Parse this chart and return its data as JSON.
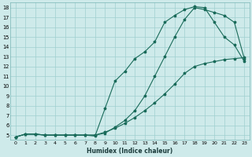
{
  "xlabel": "Humidex (Indice chaleur)",
  "bg_color": "#ceeaea",
  "grid_color": "#9fcfcf",
  "line_color": "#1a6b5a",
  "xlim": [
    -0.5,
    23.5
  ],
  "ylim": [
    4.5,
    18.5
  ],
  "xticks": [
    0,
    1,
    2,
    3,
    4,
    5,
    6,
    7,
    8,
    9,
    10,
    11,
    12,
    13,
    14,
    15,
    16,
    17,
    18,
    19,
    20,
    21,
    22,
    23
  ],
  "yticks": [
    5,
    6,
    7,
    8,
    9,
    10,
    11,
    12,
    13,
    14,
    15,
    16,
    17,
    18
  ],
  "line1_x": [
    0,
    1,
    2,
    3,
    4,
    5,
    6,
    7,
    8,
    9,
    10,
    11,
    12,
    13,
    14,
    15,
    16,
    17,
    18,
    19,
    20,
    21,
    22,
    23
  ],
  "line1_y": [
    4.8,
    5.1,
    5.1,
    5.0,
    5.0,
    5.0,
    5.0,
    5.0,
    5.0,
    5.3,
    5.7,
    6.2,
    6.8,
    7.5,
    8.3,
    9.2,
    10.2,
    11.3,
    12.0,
    12.3,
    12.5,
    12.7,
    12.8,
    12.9
  ],
  "line2_x": [
    0,
    1,
    2,
    3,
    4,
    5,
    6,
    7,
    8,
    9,
    10,
    11,
    12,
    13,
    14,
    15,
    16,
    17,
    18,
    19,
    20,
    21,
    22,
    23
  ],
  "line2_y": [
    4.8,
    5.1,
    5.1,
    5.0,
    5.0,
    5.0,
    5.0,
    5.0,
    5.0,
    5.2,
    5.8,
    6.5,
    7.5,
    9.0,
    11.0,
    13.0,
    15.0,
    16.8,
    18.0,
    17.8,
    17.5,
    17.2,
    16.5,
    12.8
  ],
  "line3_x": [
    0,
    1,
    2,
    3,
    4,
    5,
    6,
    7,
    8,
    9,
    10,
    11,
    12,
    13,
    14,
    15,
    16,
    17,
    18,
    19,
    20,
    21,
    22,
    23
  ],
  "line3_y": [
    4.8,
    5.1,
    5.1,
    5.0,
    5.0,
    5.0,
    5.0,
    5.0,
    4.9,
    7.7,
    10.5,
    11.5,
    12.8,
    13.5,
    14.5,
    16.5,
    17.2,
    17.8,
    18.1,
    18.0,
    16.5,
    15.0,
    14.2,
    12.5
  ]
}
